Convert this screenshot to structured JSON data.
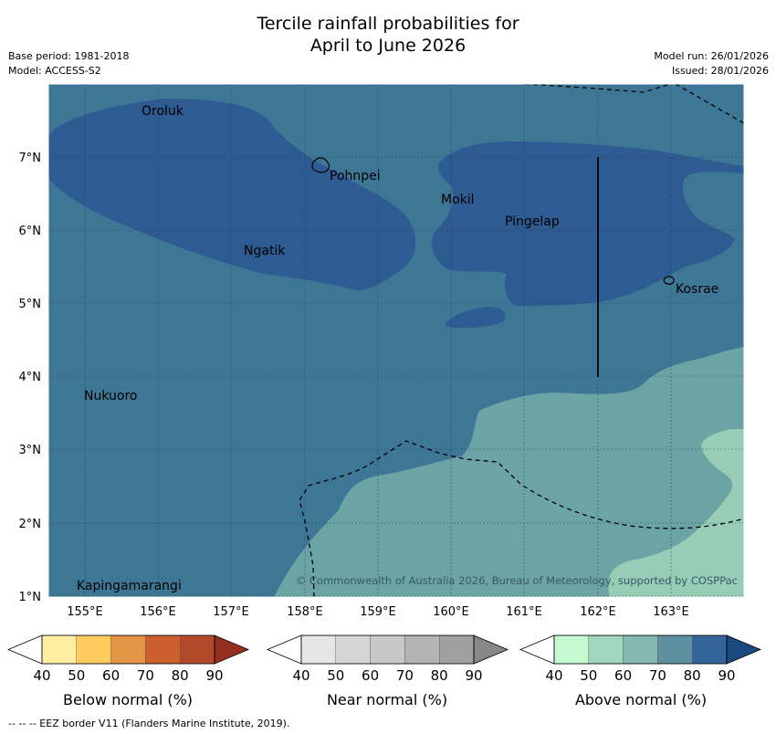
{
  "title": {
    "line1": "Tercile rainfall probabilities for",
    "line2": "April to June 2026"
  },
  "meta": {
    "base_period": "Base period: 1981-2018",
    "model": "Model: ACCESS-S2",
    "model_run": "Model run: 26/01/2026",
    "issued": "Issued: 28/01/2026"
  },
  "axes": {
    "x_ticks": [
      "155°E",
      "156°E",
      "157°E",
      "158°E",
      "159°E",
      "160°E",
      "161°E",
      "162°E",
      "163°E"
    ],
    "y_ticks": [
      "7°N",
      "6°N",
      "5°N",
      "4°N",
      "3°N",
      "2°N",
      "1°N"
    ]
  },
  "places": [
    "Oroluk",
    "Pohnpei",
    "Mokil",
    "Pingelap",
    "Ngatik",
    "Kosrae",
    "Nukuoro",
    "Kapingamarangi"
  ],
  "copyright": "© Commonwealth of Australia 2026, Bureau of Meteorology, supported by COSPPac",
  "colorbars": [
    {
      "label": "Below normal (%)",
      "ticks": [
        "40",
        "50",
        "60",
        "70",
        "80",
        "90"
      ],
      "colors": [
        "#ffeda0",
        "#fecc5c",
        "#e39444",
        "#cc5f2e",
        "#b24a2a",
        "#952f1f"
      ]
    },
    {
      "label": "Near normal (%)",
      "ticks": [
        "40",
        "50",
        "60",
        "70",
        "80",
        "90"
      ],
      "colors": [
        "#e6e6e6",
        "#d6d6d6",
        "#c8c8c8",
        "#b4b4b4",
        "#a0a0a0",
        "#878787"
      ]
    },
    {
      "label": "Above normal (%)",
      "ticks": [
        "40",
        "50",
        "60",
        "70",
        "80",
        "90"
      ],
      "colors": [
        "#c6fad1",
        "#a0d8bf",
        "#83b9b1",
        "#5c8fa0",
        "#33659a",
        "#1a4a80"
      ]
    }
  ],
  "map_colors": {
    "pct70": "#3e7796",
    "pct80": "#2e5b92",
    "pct60": "#6ca3a4",
    "pct50": "#97cdb6"
  },
  "footer": "--  --  -- EEZ border V11 (Flanders Marine Institute, 2019)."
}
